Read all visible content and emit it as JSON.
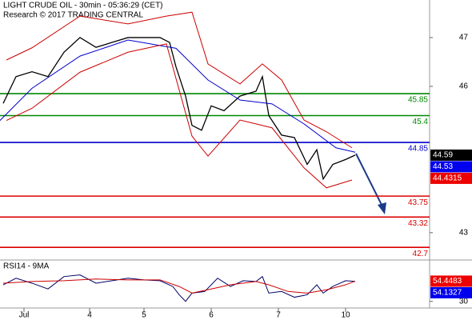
{
  "chart_data": {
    "type": "price-chart",
    "title": "LIGHT CRUDE OIL - 30min - 05:36:29 (CET)",
    "subtitle": "Research © 2017 TRADING CENTRAL",
    "xlim": [
      0,
      134.25
    ],
    "xticks": [
      {
        "value": 7.5,
        "label": "Jul"
      },
      {
        "value": 28,
        "label": "4"
      },
      {
        "value": 45,
        "label": "5"
      },
      {
        "value": 66,
        "label": "6"
      },
      {
        "value": 87,
        "label": "7"
      },
      {
        "value": 108,
        "label": "10"
      }
    ],
    "ylim": [
      42.44,
      47.77
    ],
    "yticks": [
      43,
      46,
      47
    ],
    "series": [
      {
        "color": "#000000",
        "x": [
          1,
          5,
          10,
          15,
          20,
          25,
          30,
          35,
          40,
          45,
          50,
          53,
          55,
          58,
          60,
          63,
          66,
          70,
          75,
          80,
          82,
          84,
          88,
          92,
          96,
          99,
          101,
          104,
          108,
          111
        ],
        "values": [
          45.65,
          46.2,
          46.3,
          46.2,
          46.7,
          47.0,
          46.8,
          46.9,
          47.0,
          47.0,
          47.0,
          46.9,
          46.4,
          45.8,
          45.2,
          45.1,
          45.6,
          45.5,
          45.8,
          45.9,
          46.2,
          45.4,
          45.0,
          44.95,
          44.4,
          44.7,
          44.1,
          44.4,
          44.5,
          44.59
        ]
      },
      {
        "color": "#0000cc",
        "x": [
          0,
          10,
          25,
          40,
          55,
          65,
          75,
          85,
          95,
          105,
          111
        ],
        "values": [
          45.3,
          45.96,
          46.62,
          46.95,
          46.78,
          46.13,
          45.72,
          45.64,
          45.23,
          44.74,
          44.65
        ]
      },
      {
        "color": "#cc0000",
        "x": [
          2,
          10,
          25,
          40,
          52,
          60,
          65,
          75,
          82,
          88,
          95,
          102,
          110
        ],
        "values": [
          46.54,
          46.79,
          47.44,
          47.28,
          47.44,
          47.52,
          46.46,
          46.05,
          46.46,
          46.13,
          45.31,
          45.07,
          44.74
        ]
      },
      {
        "color": "#cc0000",
        "x": [
          2,
          10,
          25,
          40,
          52,
          60,
          65,
          75,
          85,
          95,
          102,
          110
        ],
        "values": [
          45.3,
          45.55,
          46.29,
          46.7,
          46.87,
          44.98,
          44.57,
          45.31,
          45.15,
          44.33,
          43.92,
          44.08
        ]
      }
    ],
    "price_levels": {
      "values": [
        45.85,
        45.4,
        44.85,
        43.75,
        43.32,
        42.7
      ],
      "colors": [
        "#008800",
        "#008800",
        "#0000cc",
        "#dd0000",
        "#dd0000",
        "#dd0000"
      ]
    },
    "price_tags": {
      "values": [
        44.59,
        44.53,
        44.4315
      ],
      "colors": [
        "#000000",
        "#0000ee",
        "#ee0000"
      ]
    },
    "rsi": {
      "title": "RSI14 - 9MA",
      "ylim": [
        22,
        80
      ],
      "yticks": [
        30
      ],
      "series": [
        {
          "color": "#000066",
          "x": [
            1,
            5,
            10,
            15,
            20,
            25,
            30,
            35,
            40,
            45,
            50,
            54,
            56,
            58,
            60,
            64,
            68,
            72,
            76,
            80,
            82,
            84,
            88,
            92,
            96,
            99,
            101,
            104,
            108,
            111
          ],
          "values": [
            50,
            58,
            52,
            45,
            60,
            62,
            52,
            55,
            58,
            56,
            55,
            48,
            38,
            30,
            40,
            42,
            58,
            48,
            55,
            54,
            60,
            40,
            42,
            35,
            38,
            50,
            40,
            48,
            55,
            54.13
          ]
        },
        {
          "color": "#cc0000",
          "x": [
            1,
            10,
            20,
            30,
            40,
            50,
            56,
            60,
            66,
            72,
            80,
            84,
            90,
            96,
            102,
            108,
            111
          ],
          "values": [
            52,
            54,
            55,
            57,
            56,
            56,
            48,
            40,
            45,
            50,
            54,
            50,
            42,
            40,
            44,
            50,
            54.45
          ]
        }
      ],
      "tags": {
        "values": [
          54.4483,
          54.1327
        ],
        "colors": [
          "#ee0000",
          "#0000ee"
        ]
      }
    }
  }
}
